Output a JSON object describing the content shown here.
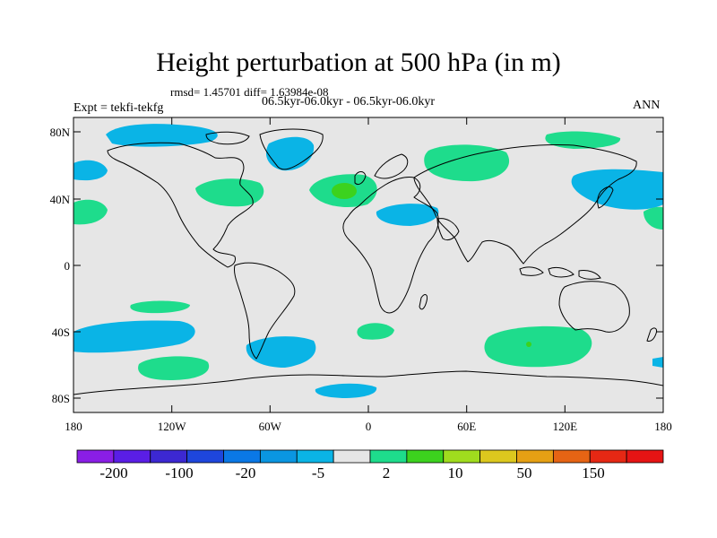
{
  "title": "Height perturbation at 500 hPa (in m)",
  "stats_line": "rmsd= 1.45701 diff= 1.63984e-08",
  "period_line": "06.5kyr-06.0kyr - 06.5kyr-06.0kyr",
  "experiment_label": "Expt = tekfi-tekfg",
  "season_label": "ANN",
  "axes": {
    "lat_labels": [
      "80N",
      "40N",
      "0",
      "40S",
      "80S"
    ],
    "lon_labels": [
      "180",
      "120W",
      "60W",
      "0",
      "60E",
      "120E",
      "180"
    ]
  },
  "colorbar": {
    "colors": [
      "#8a1ee6",
      "#5a1ee6",
      "#3c28d2",
      "#1e46dc",
      "#0a78e6",
      "#0a96e1",
      "#0ab4e6",
      "#e6e6e6",
      "#1edc8c",
      "#3cd21e",
      "#a0dc1e",
      "#dcc81e",
      "#e6a014",
      "#e66414",
      "#e62814",
      "#e61414"
    ],
    "labels": [
      "-200",
      "-100",
      "-20",
      "-5",
      "2",
      "10",
      "50",
      "150"
    ]
  },
  "colors": {
    "background": "#e6e6e6",
    "positive_anomaly": "#1edc8c",
    "strong_positive": "#3cd21e",
    "negative_anomaly": "#0ab4e6",
    "coastline": "#000000"
  }
}
